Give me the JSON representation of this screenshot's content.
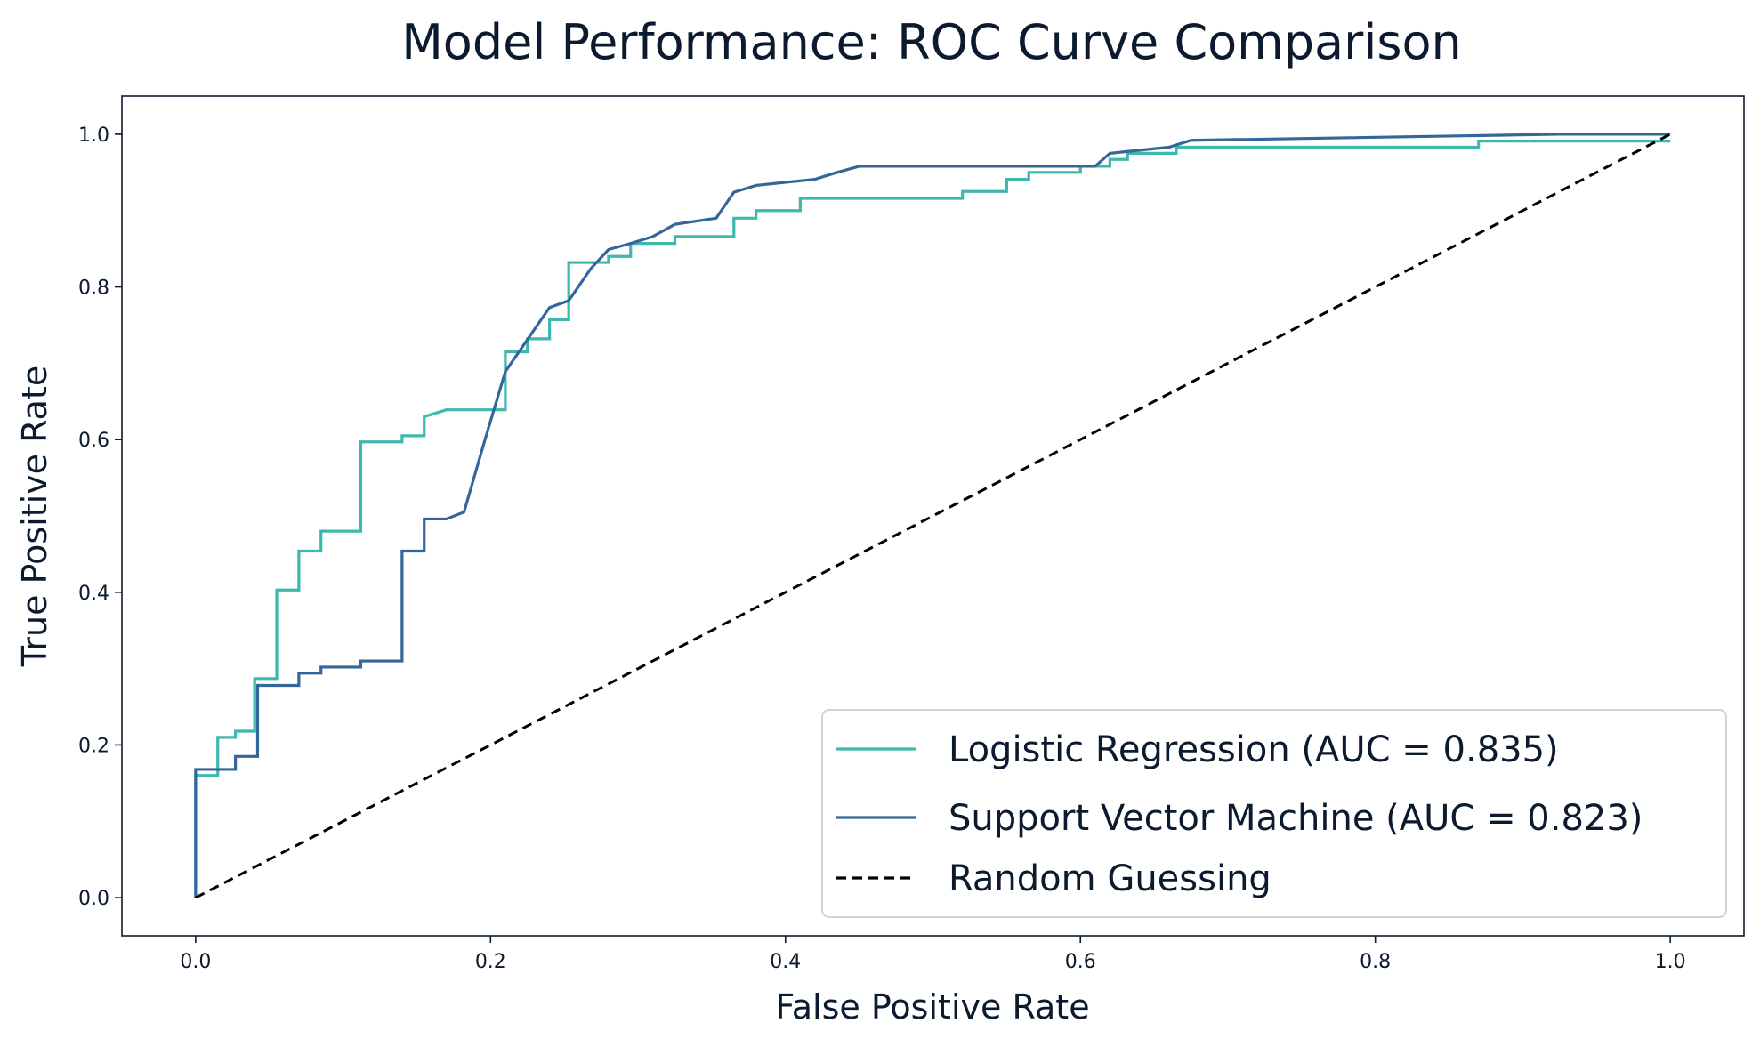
{
  "chart_data": {
    "type": "line",
    "title": "Model Performance: ROC Curve Comparison",
    "xlabel": "False Positive Rate",
    "ylabel": "True Positive Rate",
    "xlim": [
      -0.05,
      1.05
    ],
    "ylim": [
      -0.05,
      1.05
    ],
    "xticks": [
      "0.0",
      "0.2",
      "0.4",
      "0.6",
      "0.8",
      "1.0"
    ],
    "yticks": [
      "0.0",
      "0.2",
      "0.4",
      "0.6",
      "0.8",
      "1.0"
    ],
    "grid": false,
    "legend_position": "bottom-right",
    "series": [
      {
        "name": "Logistic Regression (AUC = 0.835)",
        "color": "#3eb8ac",
        "style": "solid",
        "x": [
          0.0,
          0.0,
          0.015,
          0.015,
          0.027,
          0.027,
          0.04,
          0.04,
          0.055,
          0.055,
          0.07,
          0.07,
          0.085,
          0.085,
          0.112,
          0.112,
          0.14,
          0.14,
          0.155,
          0.155,
          0.17,
          0.21,
          0.21,
          0.225,
          0.225,
          0.24,
          0.24,
          0.253,
          0.253,
          0.28,
          0.28,
          0.295,
          0.295,
          0.325,
          0.325,
          0.365,
          0.365,
          0.38,
          0.38,
          0.41,
          0.41,
          0.52,
          0.52,
          0.55,
          0.55,
          0.565,
          0.565,
          0.6,
          0.6,
          0.62,
          0.62,
          0.632,
          0.632,
          0.665,
          0.665,
          0.68,
          0.68,
          0.87,
          0.87,
          1.0
        ],
        "y": [
          0.0,
          0.16,
          0.16,
          0.21,
          0.21,
          0.218,
          0.218,
          0.287,
          0.287,
          0.403,
          0.403,
          0.454,
          0.454,
          0.48,
          0.48,
          0.597,
          0.597,
          0.605,
          0.605,
          0.63,
          0.639,
          0.639,
          0.715,
          0.715,
          0.732,
          0.732,
          0.757,
          0.757,
          0.832,
          0.832,
          0.84,
          0.84,
          0.857,
          0.857,
          0.866,
          0.866,
          0.89,
          0.89,
          0.9,
          0.9,
          0.916,
          0.916,
          0.925,
          0.925,
          0.941,
          0.941,
          0.95,
          0.95,
          0.958,
          0.958,
          0.967,
          0.967,
          0.975,
          0.975,
          0.983,
          0.983,
          0.983,
          0.983,
          0.991,
          0.991
        ]
      },
      {
        "name": "Support Vector Machine (AUC = 0.823)",
        "color": "#336699",
        "style": "solid",
        "x": [
          0.0,
          0.0,
          0.027,
          0.027,
          0.042,
          0.042,
          0.07,
          0.07,
          0.085,
          0.085,
          0.112,
          0.112,
          0.14,
          0.14,
          0.155,
          0.155,
          0.17,
          0.182,
          0.182,
          0.197,
          0.197,
          0.21,
          0.21,
          0.225,
          0.225,
          0.24,
          0.24,
          0.253,
          0.253,
          0.268,
          0.268,
          0.28,
          0.28,
          0.295,
          0.295,
          0.31,
          0.31,
          0.325,
          0.325,
          0.353,
          0.353,
          0.365,
          0.365,
          0.38,
          0.38,
          0.42,
          0.42,
          0.435,
          0.435,
          0.45,
          0.45,
          0.61,
          0.61,
          0.62,
          0.62,
          0.66,
          0.66,
          0.675,
          0.675,
          0.925,
          0.925,
          1.0
        ],
        "y": [
          0.0,
          0.168,
          0.168,
          0.185,
          0.185,
          0.278,
          0.278,
          0.294,
          0.294,
          0.302,
          0.302,
          0.31,
          0.31,
          0.454,
          0.454,
          0.496,
          0.496,
          0.505,
          0.505,
          0.605,
          0.605,
          0.689,
          0.689,
          0.731,
          0.731,
          0.773,
          0.773,
          0.782,
          0.782,
          0.824,
          0.824,
          0.849,
          0.849,
          0.857,
          0.857,
          0.866,
          0.866,
          0.882,
          0.882,
          0.89,
          0.89,
          0.924,
          0.924,
          0.933,
          0.933,
          0.941,
          0.941,
          0.95,
          0.95,
          0.958,
          0.958,
          0.958,
          0.958,
          0.975,
          0.975,
          0.983,
          0.983,
          0.992,
          0.992,
          1.0,
          1.0,
          1.0
        ]
      },
      {
        "name": "Random Guessing",
        "color": "#000000",
        "style": "dashed",
        "x": [
          0.0,
          1.0
        ],
        "y": [
          0.0,
          1.0
        ]
      }
    ]
  }
}
